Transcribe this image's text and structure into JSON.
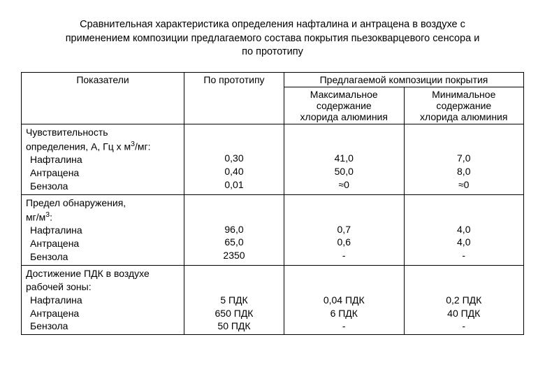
{
  "title_line1": "Сравнительная характеристика определения нафталина и антрацена в воздухе с",
  "title_line2": "применением композиции предлагаемого состава покрытия пьезокварцевого сенсора и",
  "title_line3": "по прототипу",
  "headers": {
    "col1": "Показатели",
    "col2": "По прототипу",
    "col34_top": "Предлагаемой композиции покрытия",
    "col3_a": "Максимальное",
    "col3_b": "содержание",
    "col3_c": "хлорида алюминия",
    "col4_a": "Минимальное",
    "col4_b": "содержание",
    "col4_c": "хлорида алюминия"
  },
  "groups": [
    {
      "label_a": "Чувствительность",
      "label_b_html": "определения, A, Гц х м<sup>3</sup>/мг:",
      "rows": [
        {
          "name": "Нафталина",
          "c2": "0,30",
          "c3": "41,0",
          "c4": "7,0"
        },
        {
          "name": "Антрацена",
          "c2": "0,40",
          "c3": "50,0",
          "c4": "8,0"
        },
        {
          "name": "Бензола",
          "c2": "0,01",
          "c3": "≈0",
          "c4": "≈0"
        }
      ]
    },
    {
      "label_a": "Предел обнаружения,",
      "label_b_html": "мг/м<sup>3</sup>:",
      "rows": [
        {
          "name": "Нафталина",
          "c2": "96,0",
          "c3": "0,7",
          "c4": "4,0"
        },
        {
          "name": "Антрацена",
          "c2": "65,0",
          "c3": "0,6",
          "c4": "4,0"
        },
        {
          "name": "Бензола",
          "c2": "2350",
          "c3": "-",
          "c4": "-"
        }
      ]
    },
    {
      "label_a": "Достижение ПДК в воздухе",
      "label_b_html": "рабочей зоны:",
      "rows": [
        {
          "name": "Нафталина",
          "c2": "5 ПДК",
          "c3": "0,04 ПДК",
          "c4": "0,2 ПДК"
        },
        {
          "name": "Антрацена",
          "c2": "650 ПДК",
          "c3": "6 ПДК",
          "c4": "40 ПДК"
        },
        {
          "name": "Бензола",
          "c2": "50 ПДК",
          "c3": "-",
          "c4": "-"
        }
      ]
    }
  ],
  "style": {
    "background": "#ffffff",
    "text_color": "#000000",
    "border_color": "#000000",
    "font_family": "Arial",
    "title_fontsize_pt": 11,
    "body_fontsize_pt": 11
  }
}
